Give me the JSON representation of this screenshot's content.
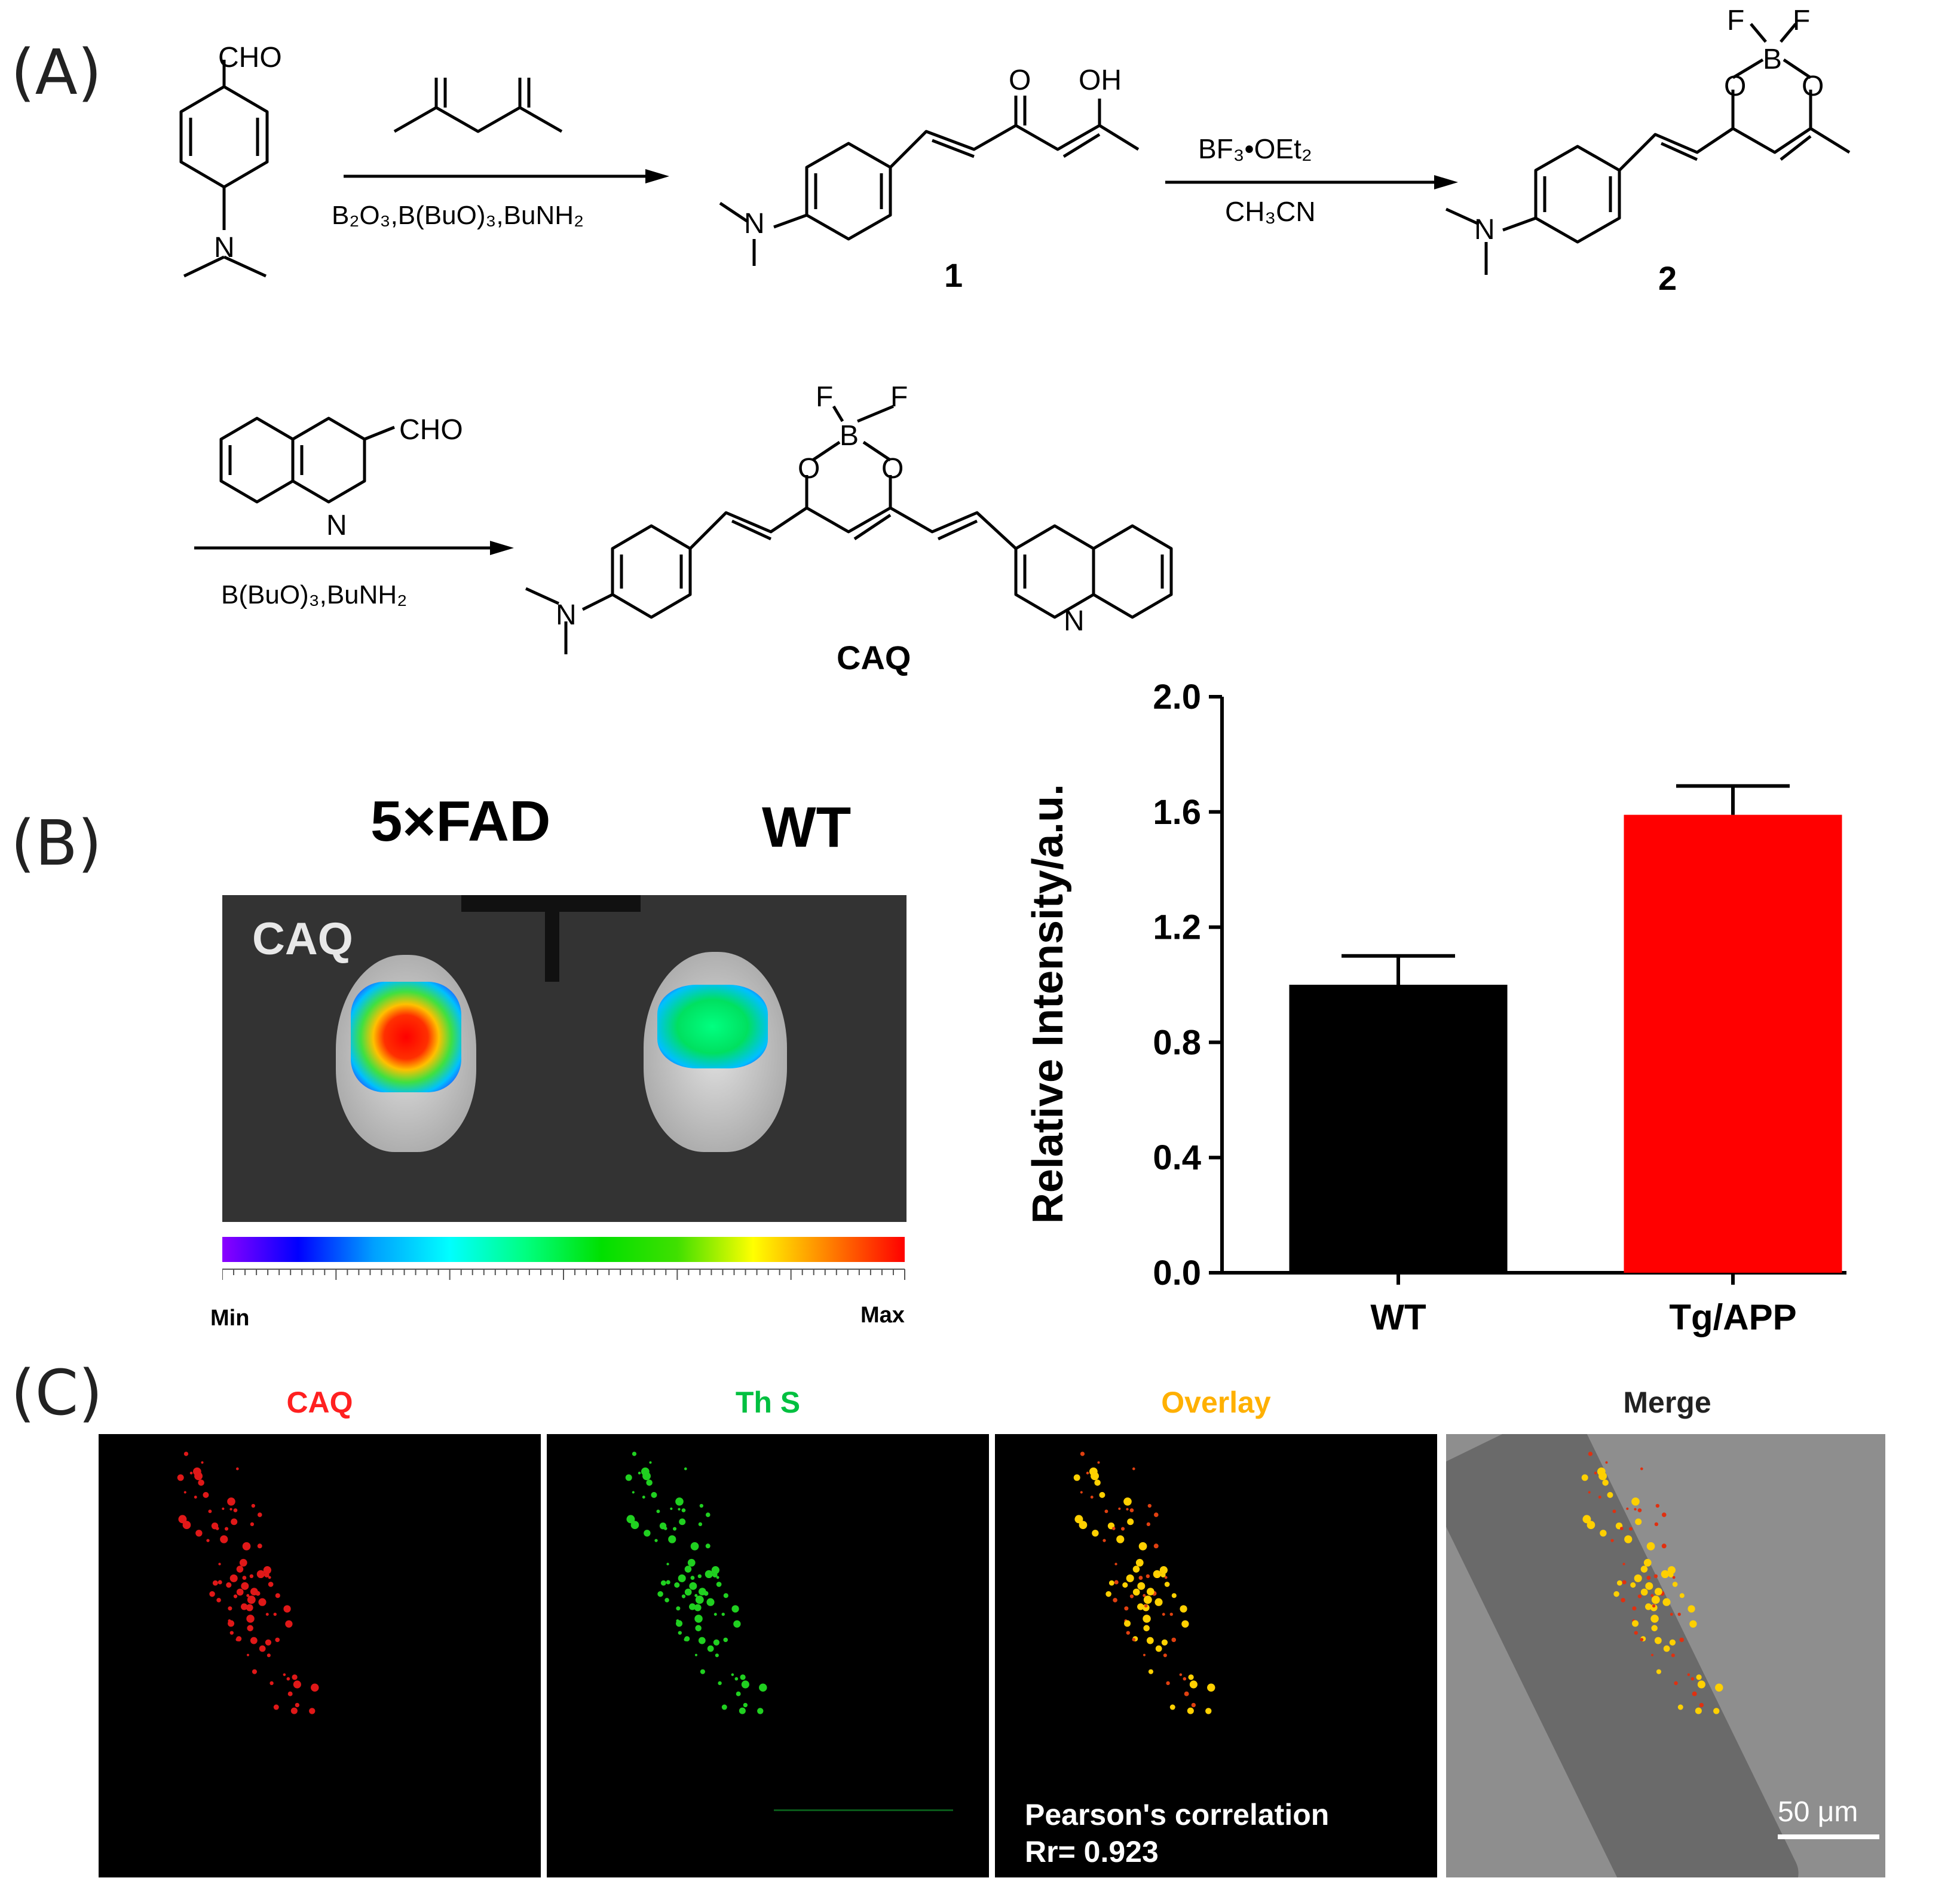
{
  "panels": {
    "a": "(A)",
    "b": "(B)",
    "c": "(C)"
  },
  "scheme": {
    "reagent_top_left": "CHO",
    "step1_conditions": "B₂O₃,B(BuO)₃,BuNH₂",
    "product1_label": "1",
    "product1_oh": "OH",
    "step2_reagent": "BF₃•OEt₂",
    "step2_solvent": "CH₃CN",
    "product2_label": "2",
    "quinoline_cho": "CHO",
    "step3_conditions": "B(BuO)₃,BuNH₂",
    "final_label": "CAQ",
    "atom_f": "F",
    "atom_b": "B",
    "atom_o": "O",
    "atom_n": "N"
  },
  "imaging": {
    "col_left": "5×FAD",
    "col_right": "WT",
    "probe": "CAQ",
    "scale_min": "Min",
    "scale_max": "Max",
    "colormap": [
      "#8b00ff",
      "#0000ff",
      "#00a0ff",
      "#00ffff",
      "#00ff80",
      "#00e000",
      "#40e000",
      "#ffff00",
      "#ff8000",
      "#ff0000"
    ]
  },
  "chart_data": {
    "type": "bar",
    "categories": [
      "WT",
      "Tg/APP"
    ],
    "values": [
      1.0,
      1.59
    ],
    "errors": [
      0.1,
      0.1
    ],
    "colors": [
      "#000000",
      "#ff0000"
    ],
    "ylabel": "Relative  Intensity/a.u.",
    "xlabel": "",
    "ylim": [
      0,
      2.0
    ],
    "yticks": [
      "0.0",
      "0.4",
      "0.8",
      "1.2",
      "1.6",
      "2.0"
    ]
  },
  "microscopy": {
    "titles": [
      {
        "text": "CAQ",
        "color": "#ff2020"
      },
      {
        "text": "Th S",
        "color": "#00c040"
      },
      {
        "text": "Overlay",
        "color": "#ffb000"
      },
      {
        "text": "Merge",
        "color": "#222222"
      }
    ],
    "pearson_label": "Pearson's correlation",
    "pearson_value": "Rr= 0.923",
    "scale_bar": "50 μm"
  }
}
